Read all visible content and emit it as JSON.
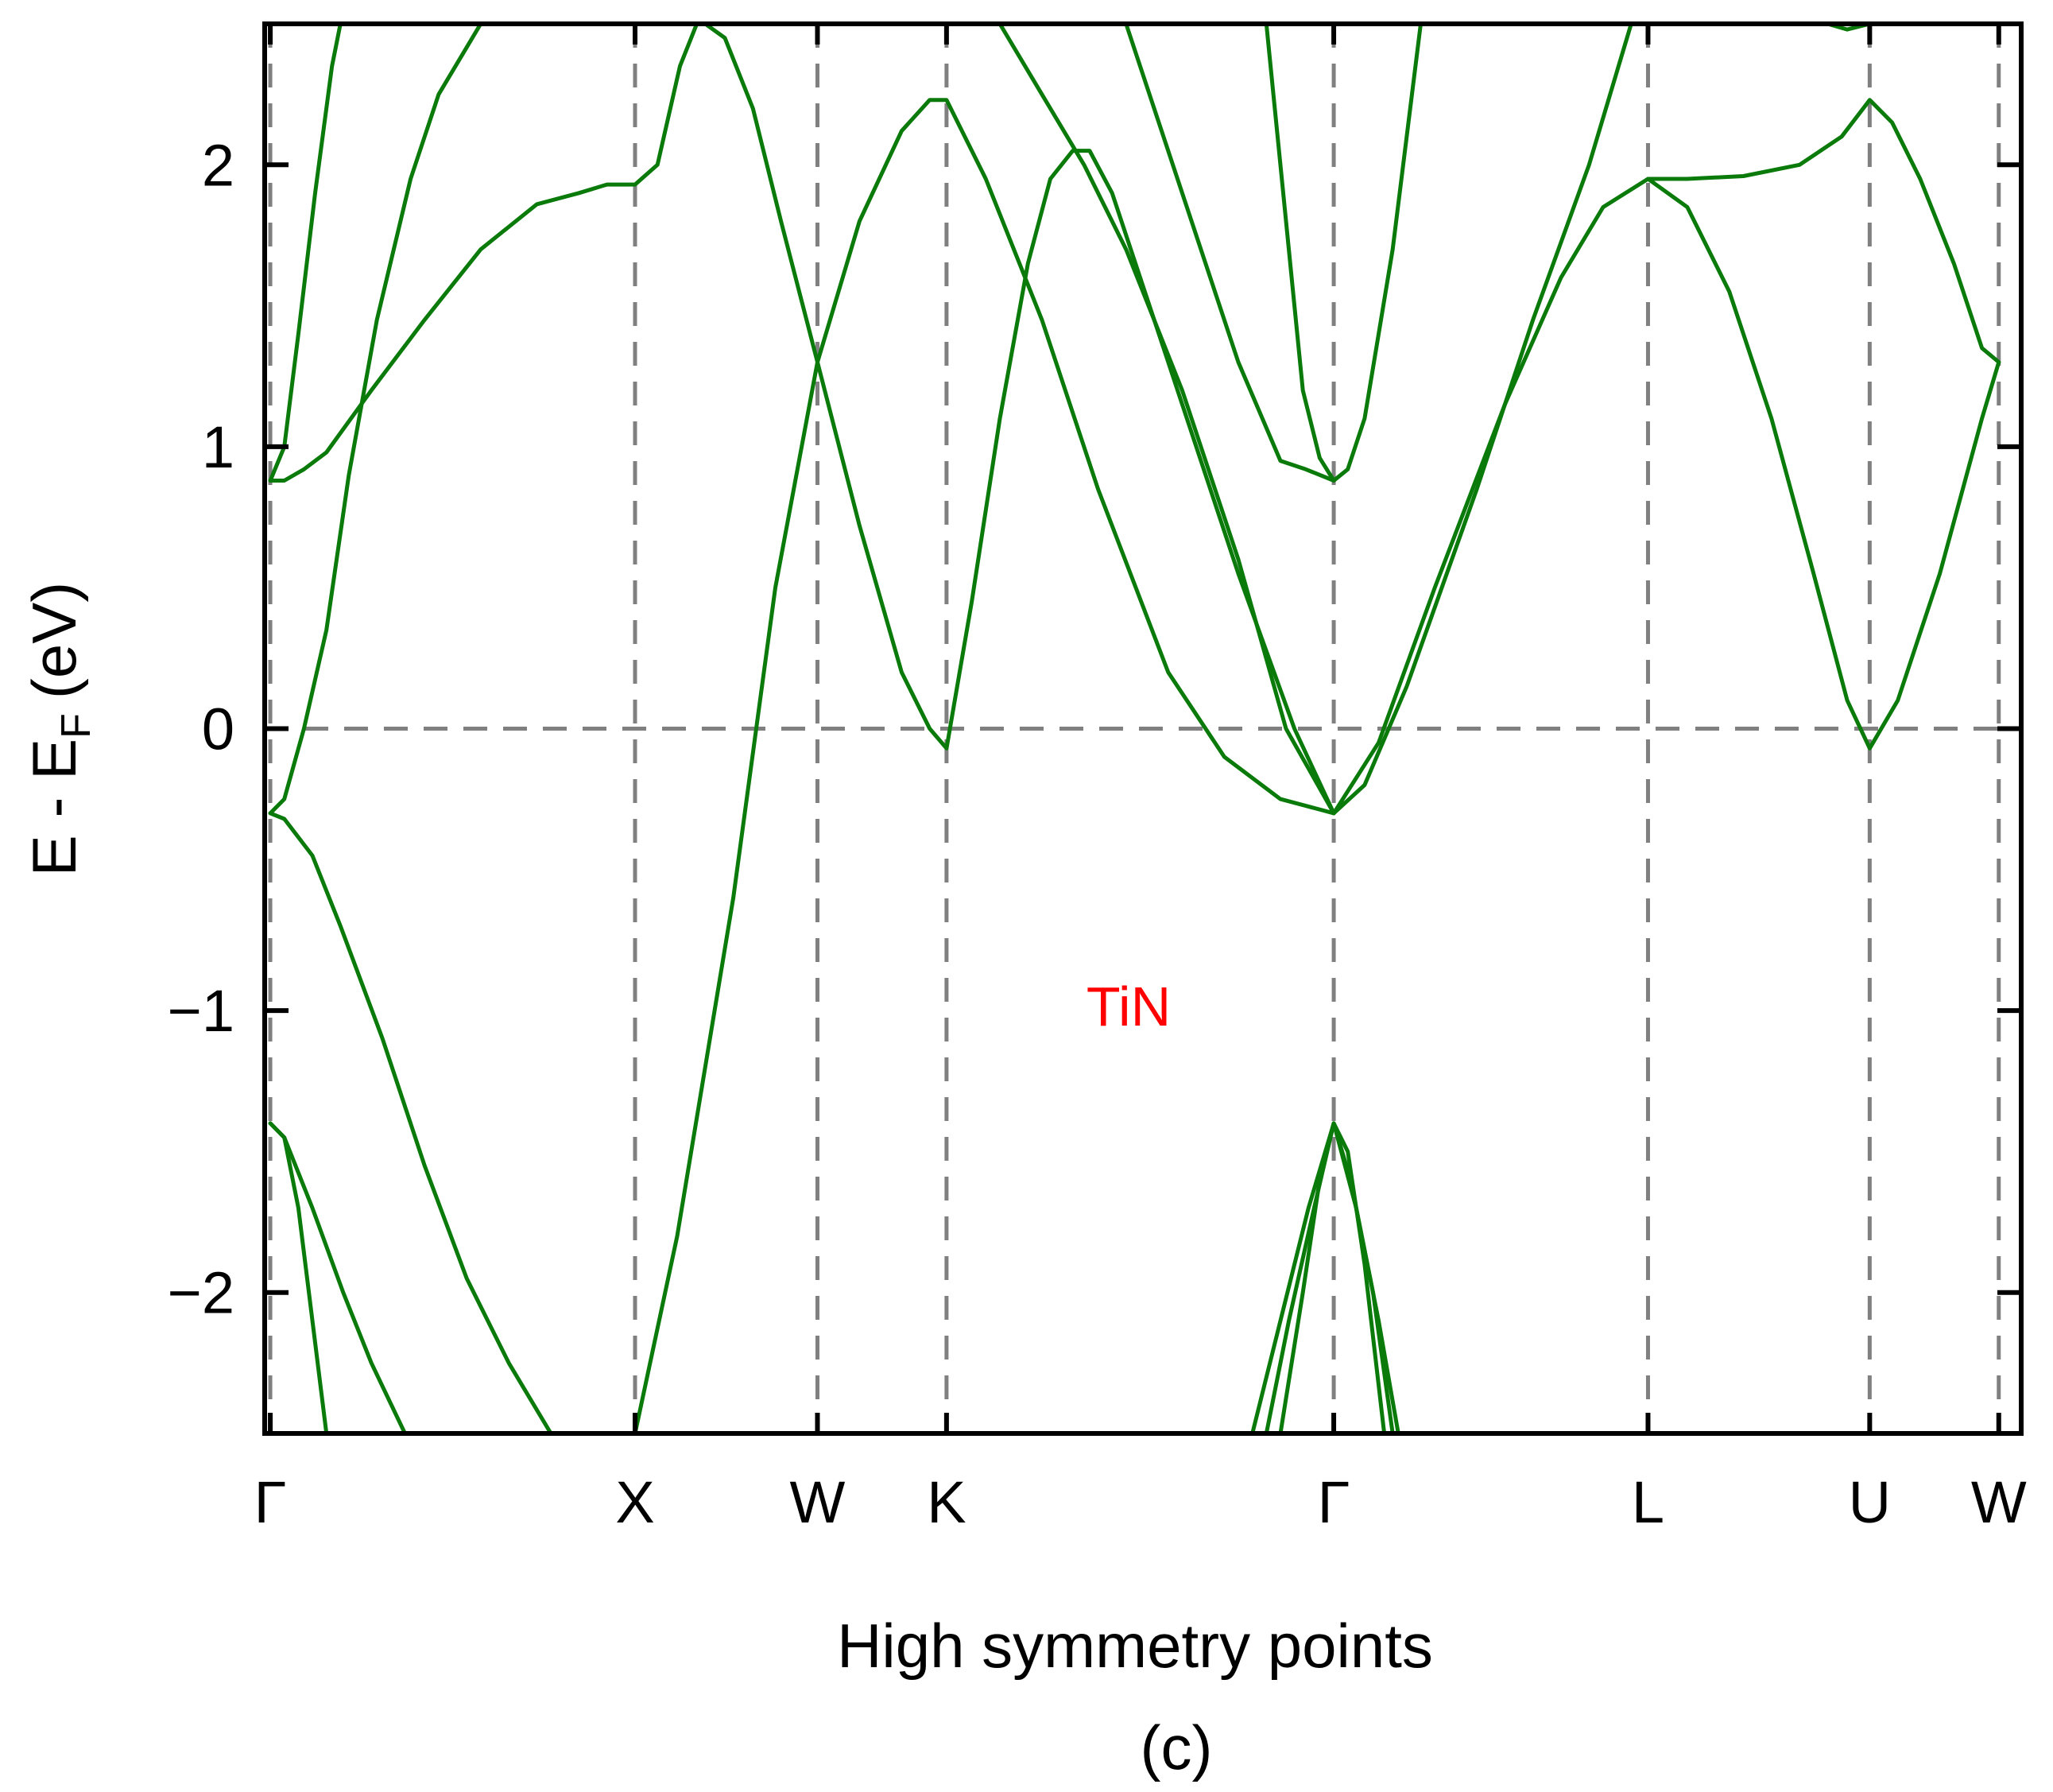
{
  "chart_data": {
    "type": "line",
    "title": "",
    "xlabel": "High symmetry points",
    "ylabel": "E - E",
    "ylabel_sub": "F",
    "ylabel_unit": "(eV)",
    "caption": "(c)",
    "annotation": {
      "text": "TiN",
      "color": "#ff0000"
    },
    "ylim": [
      -2.5,
      2.5
    ],
    "xlim": [
      -0.02,
      6.24
    ],
    "yticks": [
      -2,
      -1,
      0,
      1,
      2
    ],
    "ytick_labels": [
      "−2",
      "−1",
      "0",
      "1",
      "2"
    ],
    "kpoints": [
      {
        "label": "Γ",
        "x": 0.0
      },
      {
        "label": "X",
        "x": 1.3
      },
      {
        "label": "W",
        "x": 1.95
      },
      {
        "label": "K",
        "x": 2.41
      },
      {
        "label": "Γ",
        "x": 3.79
      },
      {
        "label": "L",
        "x": 4.91
      },
      {
        "label": "U",
        "x": 5.7
      },
      {
        "label": "W",
        "x": 6.16
      }
    ],
    "reference_line": {
      "y": 0,
      "label": "E_F"
    },
    "grid": false,
    "line_color": "#0a7a0a",
    "guide_color": "#808080",
    "series": [
      {
        "points": [
          [
            0.0,
            -1.4
          ],
          [
            0.05,
            -1.45
          ],
          [
            0.1,
            -1.7
          ],
          [
            0.2,
            -2.5
          ]
        ]
      },
      {
        "points": [
          [
            0.0,
            -1.4
          ],
          [
            0.05,
            -1.45
          ],
          [
            0.15,
            -1.7
          ],
          [
            0.26,
            -2.0
          ],
          [
            0.36,
            -2.25
          ],
          [
            0.48,
            -2.5
          ]
        ]
      },
      {
        "points": [
          [
            0.0,
            -0.3
          ],
          [
            0.05,
            -0.32
          ],
          [
            0.15,
            -0.45
          ],
          [
            0.25,
            -0.7
          ],
          [
            0.4,
            -1.1
          ],
          [
            0.55,
            -1.55
          ],
          [
            0.7,
            -1.95
          ],
          [
            0.85,
            -2.25
          ],
          [
            1.0,
            -2.5
          ]
        ]
      },
      {
        "points": [
          [
            0.0,
            -0.3
          ],
          [
            0.05,
            -0.25
          ],
          [
            0.12,
            0.0
          ],
          [
            0.2,
            0.35
          ],
          [
            0.28,
            0.9
          ],
          [
            0.38,
            1.45
          ],
          [
            0.5,
            1.95
          ],
          [
            0.6,
            2.25
          ],
          [
            0.75,
            2.5
          ]
        ]
      },
      {
        "points": [
          [
            0.0,
            0.88
          ],
          [
            0.05,
            0.88
          ],
          [
            0.12,
            0.92
          ],
          [
            0.2,
            0.98
          ],
          [
            0.36,
            1.2
          ],
          [
            0.55,
            1.45
          ],
          [
            0.75,
            1.7
          ],
          [
            0.95,
            1.86
          ],
          [
            1.1,
            1.9
          ],
          [
            1.2,
            1.93
          ],
          [
            1.3,
            1.93
          ],
          [
            1.38,
            2.0
          ],
          [
            1.46,
            2.35
          ],
          [
            1.52,
            2.5
          ]
        ]
      },
      {
        "points": [
          [
            0.0,
            0.88
          ],
          [
            0.05,
            1.0
          ],
          [
            0.1,
            1.4
          ],
          [
            0.16,
            1.9
          ],
          [
            0.22,
            2.35
          ],
          [
            0.25,
            2.5
          ]
        ]
      },
      {
        "points": [
          [
            1.3,
            -2.5
          ],
          [
            1.45,
            -1.8
          ],
          [
            1.65,
            -0.6
          ],
          [
            1.8,
            0.5
          ],
          [
            1.95,
            1.3
          ],
          [
            2.1,
            1.8
          ],
          [
            2.25,
            2.12
          ],
          [
            2.35,
            2.23
          ],
          [
            2.41,
            2.23
          ],
          [
            2.55,
            1.95
          ],
          [
            2.75,
            1.45
          ],
          [
            2.95,
            0.85
          ],
          [
            3.2,
            0.2
          ],
          [
            3.4,
            -0.1
          ],
          [
            3.6,
            -0.25
          ],
          [
            3.79,
            -0.3
          ]
        ]
      },
      {
        "points": [
          [
            1.55,
            2.5
          ],
          [
            1.62,
            2.45
          ],
          [
            1.72,
            2.2
          ],
          [
            1.82,
            1.8
          ],
          [
            1.95,
            1.3
          ],
          [
            2.1,
            0.72
          ],
          [
            2.25,
            0.2
          ],
          [
            2.35,
            0.0
          ],
          [
            2.41,
            -0.07
          ],
          [
            2.5,
            0.45
          ],
          [
            2.6,
            1.1
          ],
          [
            2.7,
            1.65
          ],
          [
            2.78,
            1.95
          ],
          [
            2.86,
            2.05
          ],
          [
            2.92,
            2.05
          ],
          [
            3.0,
            1.9
          ],
          [
            3.2,
            1.3
          ],
          [
            3.45,
            0.55
          ],
          [
            3.65,
            0.0
          ],
          [
            3.79,
            -0.3
          ]
        ]
      },
      {
        "points": [
          [
            2.6,
            2.5
          ],
          [
            2.75,
            2.25
          ],
          [
            2.9,
            2.0
          ],
          [
            3.05,
            1.7
          ],
          [
            3.25,
            1.2
          ],
          [
            3.45,
            0.6
          ],
          [
            3.62,
            0.0
          ],
          [
            3.79,
            -0.3
          ]
        ]
      },
      {
        "points": [
          [
            3.05,
            2.5
          ],
          [
            3.25,
            1.9
          ],
          [
            3.45,
            1.3
          ],
          [
            3.6,
            0.95
          ],
          [
            3.69,
            0.92
          ],
          [
            3.79,
            0.88
          ],
          [
            3.84,
            0.92
          ],
          [
            3.9,
            1.1
          ],
          [
            4.0,
            1.7
          ],
          [
            4.1,
            2.5
          ]
        ]
      },
      {
        "points": [
          [
            3.55,
            2.5
          ],
          [
            3.61,
            1.9
          ],
          [
            3.68,
            1.2
          ],
          [
            3.74,
            0.96
          ],
          [
            3.79,
            0.88
          ]
        ]
      },
      {
        "points": [
          [
            3.79,
            -0.3
          ],
          [
            3.9,
            -0.2
          ],
          [
            4.05,
            0.15
          ],
          [
            4.3,
            0.85
          ],
          [
            4.5,
            1.45
          ],
          [
            4.7,
            2.0
          ],
          [
            4.85,
            2.5
          ]
        ]
      },
      {
        "points": [
          [
            3.79,
            -0.3
          ],
          [
            3.95,
            -0.05
          ],
          [
            4.15,
            0.5
          ],
          [
            4.4,
            1.15
          ],
          [
            4.6,
            1.6
          ],
          [
            4.75,
            1.85
          ],
          [
            4.91,
            1.95
          ],
          [
            5.05,
            1.95
          ],
          [
            5.25,
            1.96
          ],
          [
            5.45,
            2.0
          ],
          [
            5.6,
            2.1
          ],
          [
            5.7,
            2.23
          ],
          [
            5.78,
            2.15
          ],
          [
            5.88,
            1.95
          ],
          [
            6.0,
            1.65
          ],
          [
            6.1,
            1.35
          ],
          [
            6.16,
            1.3
          ]
        ]
      },
      {
        "points": [
          [
            4.91,
            1.95
          ],
          [
            5.05,
            1.85
          ],
          [
            5.2,
            1.55
          ],
          [
            5.35,
            1.1
          ],
          [
            5.5,
            0.55
          ],
          [
            5.62,
            0.1
          ],
          [
            5.7,
            -0.07
          ],
          [
            5.8,
            0.1
          ],
          [
            5.95,
            0.55
          ],
          [
            6.1,
            1.1
          ],
          [
            6.16,
            1.3
          ]
        ]
      },
      {
        "points": [
          [
            5.55,
            2.5
          ],
          [
            5.62,
            2.48
          ],
          [
            5.7,
            2.5
          ]
        ]
      },
      {
        "points": [
          [
            3.5,
            -2.5
          ],
          [
            3.6,
            -2.1
          ],
          [
            3.7,
            -1.7
          ],
          [
            3.79,
            -1.4
          ],
          [
            3.87,
            -1.7
          ],
          [
            3.95,
            -2.1
          ],
          [
            4.02,
            -2.5
          ]
        ]
      },
      {
        "points": [
          [
            3.55,
            -2.5
          ],
          [
            3.63,
            -2.1
          ],
          [
            3.72,
            -1.7
          ],
          [
            3.79,
            -1.4
          ],
          [
            3.85,
            -1.6
          ],
          [
            3.93,
            -2.0
          ],
          [
            4.0,
            -2.5
          ]
        ]
      },
      {
        "points": [
          [
            3.6,
            -2.5
          ],
          [
            3.68,
            -2.0
          ],
          [
            3.74,
            -1.6
          ],
          [
            3.79,
            -1.4
          ],
          [
            3.84,
            -1.5
          ],
          [
            3.9,
            -1.9
          ],
          [
            3.97,
            -2.5
          ]
        ]
      }
    ]
  }
}
